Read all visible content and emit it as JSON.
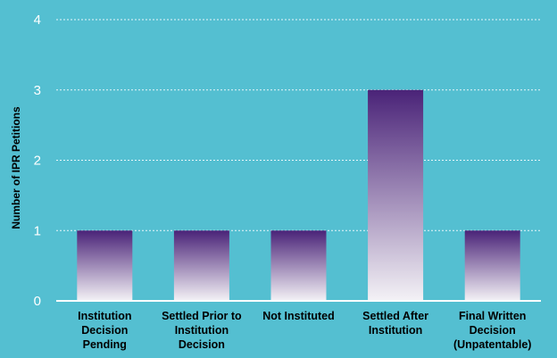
{
  "chart_data": {
    "type": "bar",
    "categories": [
      [
        "Institution",
        "Decision",
        "Pending"
      ],
      [
        "Settled Prior to",
        "Institution",
        "Decision"
      ],
      [
        "Not Instituted"
      ],
      [
        "Settled After",
        "Institution"
      ],
      [
        "Final Written",
        "Decision",
        "(Unpatentable)"
      ]
    ],
    "values": [
      1,
      1,
      1,
      3,
      1
    ],
    "ylabel": "Number of IPR Petitions",
    "ylim": [
      0,
      4
    ],
    "yticks": [
      0,
      1,
      2,
      3,
      4
    ],
    "grid": true,
    "colors": {
      "background": "#54bfd1",
      "bar_top": "#4a2378",
      "bar_bottom": "#f4f2f6",
      "grid": "#e8f7fa",
      "tick_text": "#ffffff",
      "label_text": "#000000"
    }
  }
}
